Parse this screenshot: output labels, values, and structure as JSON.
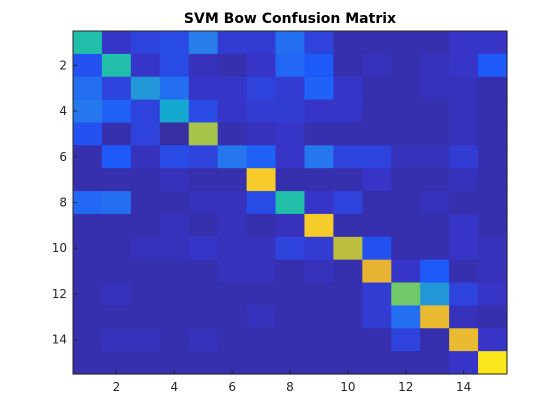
{
  "chart_data": {
    "type": "heatmap",
    "title": "SVM Bow Confusion Matrix",
    "xlabel": "",
    "ylabel": "",
    "n": 15,
    "x_ticks": [
      2,
      4,
      6,
      8,
      10,
      12,
      14
    ],
    "y_ticks": [
      2,
      4,
      6,
      8,
      10,
      12,
      14
    ],
    "colormap": "parula",
    "color_range": [
      0,
      1
    ],
    "values": [
      [
        0.55,
        0.1,
        0.14,
        0.16,
        0.3,
        0.12,
        0.12,
        0.26,
        0.14,
        0.06,
        0.06,
        0.06,
        0.06,
        0.1,
        0.1
      ],
      [
        0.18,
        0.55,
        0.1,
        0.16,
        0.08,
        0.06,
        0.1,
        0.24,
        0.2,
        0.06,
        0.08,
        0.06,
        0.08,
        0.1,
        0.2
      ],
      [
        0.26,
        0.14,
        0.4,
        0.26,
        0.1,
        0.1,
        0.14,
        0.12,
        0.22,
        0.1,
        0.06,
        0.06,
        0.08,
        0.08,
        0.06
      ],
      [
        0.28,
        0.22,
        0.14,
        0.46,
        0.16,
        0.1,
        0.12,
        0.12,
        0.1,
        0.1,
        0.06,
        0.06,
        0.06,
        0.08,
        0.06
      ],
      [
        0.18,
        0.06,
        0.14,
        0.04,
        0.72,
        0.06,
        0.08,
        0.1,
        0.06,
        0.06,
        0.06,
        0.06,
        0.06,
        0.08,
        0.06
      ],
      [
        0.06,
        0.2,
        0.08,
        0.16,
        0.14,
        0.28,
        0.22,
        0.1,
        0.28,
        0.14,
        0.14,
        0.08,
        0.08,
        0.12,
        0.06
      ],
      [
        0.06,
        0.06,
        0.06,
        0.08,
        0.06,
        0.06,
        0.88,
        0.06,
        0.06,
        0.06,
        0.1,
        0.06,
        0.06,
        0.08,
        0.06
      ],
      [
        0.24,
        0.26,
        0.06,
        0.06,
        0.08,
        0.08,
        0.16,
        0.55,
        0.1,
        0.14,
        0.06,
        0.06,
        0.08,
        0.06,
        0.06
      ],
      [
        0.06,
        0.06,
        0.06,
        0.08,
        0.06,
        0.08,
        0.06,
        0.08,
        0.88,
        0.06,
        0.06,
        0.06,
        0.06,
        0.1,
        0.06
      ],
      [
        0.06,
        0.06,
        0.08,
        0.08,
        0.1,
        0.08,
        0.08,
        0.14,
        0.12,
        0.75,
        0.18,
        0.06,
        0.06,
        0.1,
        0.08
      ],
      [
        0.06,
        0.06,
        0.06,
        0.06,
        0.06,
        0.08,
        0.08,
        0.06,
        0.08,
        0.06,
        0.8,
        0.1,
        0.2,
        0.06,
        0.08
      ],
      [
        0.06,
        0.08,
        0.06,
        0.06,
        0.06,
        0.06,
        0.06,
        0.06,
        0.06,
        0.06,
        0.12,
        0.66,
        0.4,
        0.14,
        0.1
      ],
      [
        0.06,
        0.06,
        0.06,
        0.06,
        0.06,
        0.06,
        0.08,
        0.06,
        0.06,
        0.06,
        0.12,
        0.26,
        0.82,
        0.08,
        0.06
      ],
      [
        0.06,
        0.08,
        0.08,
        0.06,
        0.08,
        0.06,
        0.06,
        0.06,
        0.06,
        0.06,
        0.06,
        0.14,
        0.06,
        0.82,
        0.1
      ],
      [
        0.06,
        0.06,
        0.06,
        0.06,
        0.06,
        0.06,
        0.06,
        0.06,
        0.06,
        0.06,
        0.06,
        0.06,
        0.06,
        0.1,
        0.95
      ]
    ]
  }
}
